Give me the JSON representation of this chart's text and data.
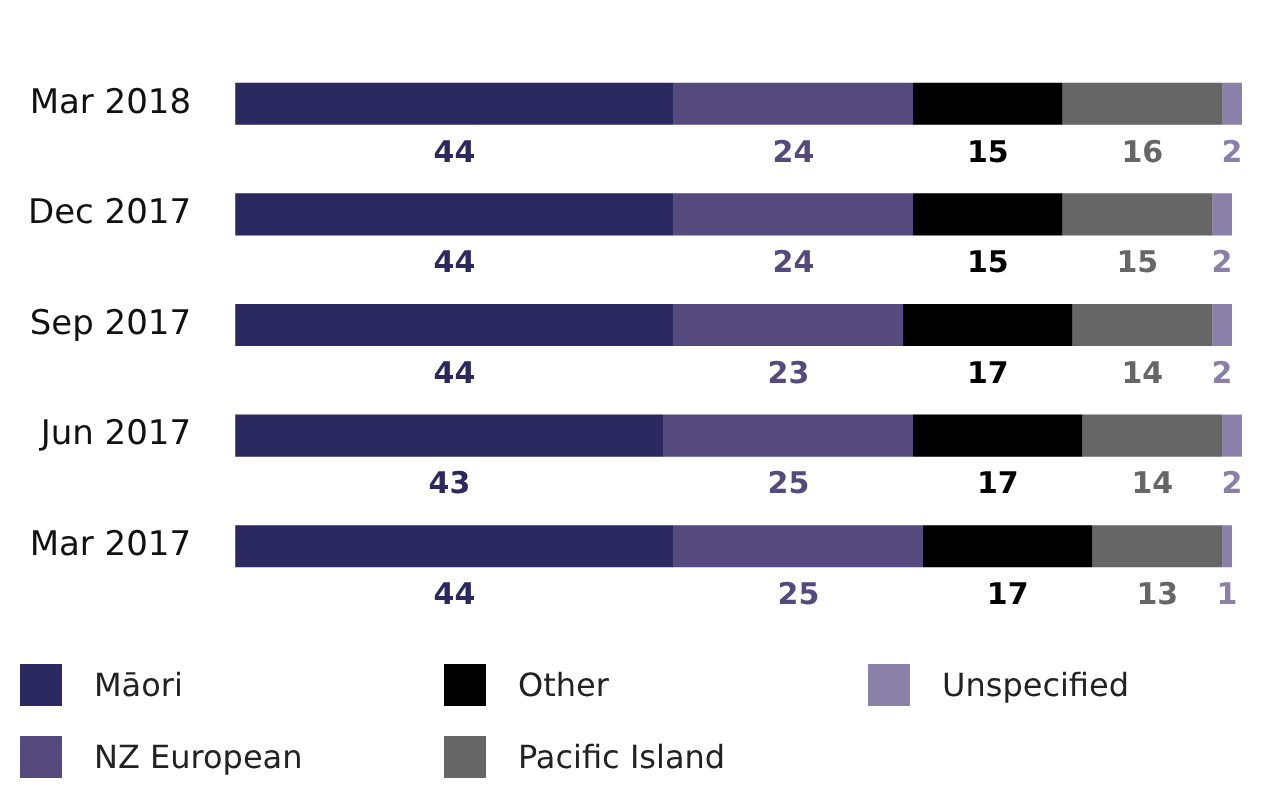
{
  "chart_data": {
    "type": "bar",
    "orientation": "horizontal",
    "stacked": true,
    "data_labels": true,
    "legend": "bottom",
    "categories": [
      "Mar 2018",
      "Dec 2017",
      "Sep 2017",
      "Jun 2017",
      "Mar 2017"
    ],
    "series": [
      {
        "name": "Māori",
        "color": "#2b2960",
        "values": [
          44,
          44,
          44,
          43,
          44
        ]
      },
      {
        "name": "NZ European",
        "color": "#554a7e",
        "values": [
          24,
          24,
          23,
          25,
          25
        ]
      },
      {
        "name": "Other",
        "color": "#000000",
        "values": [
          15,
          15,
          17,
          17,
          17
        ]
      },
      {
        "name": "Pacific Island",
        "color": "#666666",
        "values": [
          16,
          15,
          14,
          14,
          13
        ]
      },
      {
        "name": "Unspecified",
        "color": "#8b80a9",
        "values": [
          2,
          2,
          2,
          2,
          1
        ]
      }
    ]
  }
}
